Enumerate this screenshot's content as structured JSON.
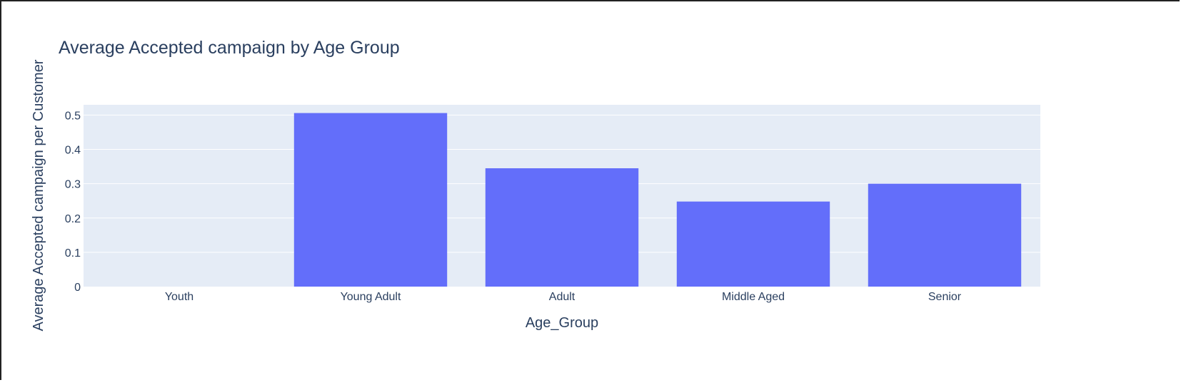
{
  "chart_data": {
    "type": "bar",
    "title": "Average Accepted campaign by Age Group",
    "xlabel": "Age_Group",
    "ylabel": "Average Accepted campaign per Customer",
    "categories": [
      "Youth",
      "Young Adult",
      "Adult",
      "Middle Aged",
      "Senior"
    ],
    "values": [
      0,
      0.506,
      0.345,
      0.248,
      0.3
    ],
    "ylim": [
      0,
      0.53
    ],
    "yticks": [
      0,
      0.1,
      0.2,
      0.3,
      0.4,
      0.5
    ],
    "ytick_labels": [
      "0",
      "0.1",
      "0.2",
      "0.3",
      "0.4",
      "0.5"
    ],
    "grid": true,
    "colors": {
      "bar": "#636efa",
      "plot_bg": "#e5ecf6",
      "grid": "#ffffff",
      "text": "#2a3f5f",
      "tick_text": "#2a3f5f"
    }
  }
}
